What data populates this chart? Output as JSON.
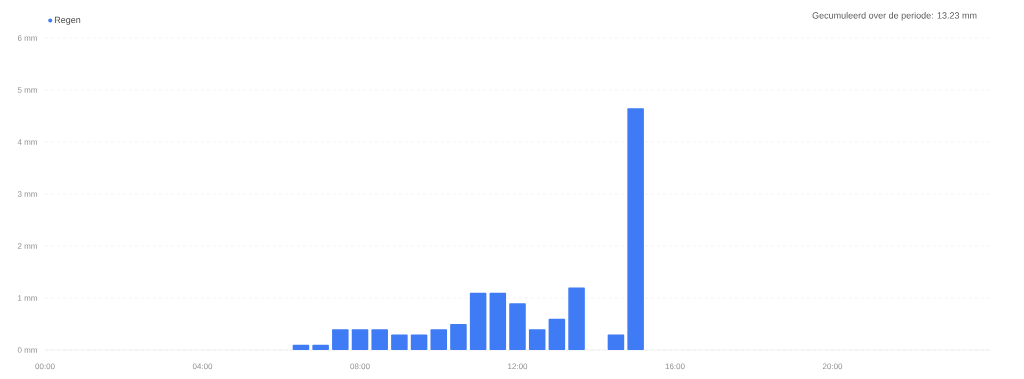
{
  "chart_data": {
    "type": "bar",
    "x": [
      6.5,
      7,
      7.5,
      8,
      8.5,
      9,
      9.5,
      10,
      10.5,
      11,
      11.5,
      12,
      12.5,
      13,
      13.5,
      14.5,
      15
    ],
    "series": [
      {
        "name": "Regen",
        "color": "#3f7bf4",
        "values": [
          0.1,
          0.1,
          0.4,
          0.4,
          0.4,
          0.3,
          0.3,
          0.4,
          0.5,
          1.1,
          1.1,
          0.9,
          0.4,
          0.6,
          1.2,
          0.3,
          4.65
        ]
      }
    ],
    "xlim": [
      0,
      24
    ],
    "xticks": [
      {
        "value": 0,
        "label": "00:00"
      },
      {
        "value": 4,
        "label": "04:00"
      },
      {
        "value": 8,
        "label": "08:00"
      },
      {
        "value": 12,
        "label": "12:00"
      },
      {
        "value": 16,
        "label": "16:00"
      },
      {
        "value": 20,
        "label": "20:00"
      }
    ],
    "ylim": [
      0,
      6
    ],
    "yticks": [
      {
        "value": 0,
        "label": "0 mm"
      },
      {
        "value": 1,
        "label": "1 mm"
      },
      {
        "value": 2,
        "label": "2 mm"
      },
      {
        "value": 3,
        "label": "3 mm"
      },
      {
        "value": 4,
        "label": "4 mm"
      },
      {
        "value": 5,
        "label": "5 mm"
      },
      {
        "value": 6,
        "label": "6 mm"
      }
    ],
    "grid": "y",
    "legend": "top left",
    "annotations": [
      "Gecumuleerd over de periode: 13.23 mm"
    ]
  }
}
